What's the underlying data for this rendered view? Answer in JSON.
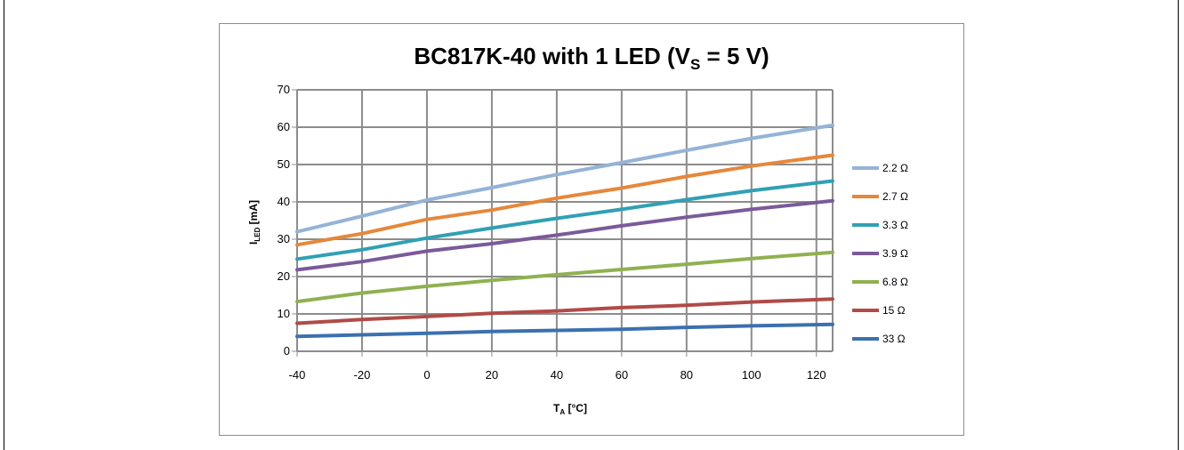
{
  "chart_data": {
    "type": "line",
    "title": "BC817K-40 with 1 LED (V",
    "title_sub": "S",
    "title_tail": " = 5 V)",
    "xlabel": "T",
    "xlabel_sub": "A",
    "xlabel_tail": " [°C]",
    "ylabel": "I",
    "ylabel_sub": "LED",
    "ylabel_tail": " [mA]",
    "xlim": [
      -40,
      125
    ],
    "ylim": [
      0,
      70
    ],
    "x_ticks": [
      -40,
      -20,
      0,
      20,
      40,
      60,
      80,
      100,
      120
    ],
    "y_ticks": [
      0,
      10,
      20,
      30,
      40,
      50,
      60,
      70
    ],
    "grid": true,
    "legend_position": "right",
    "x": [
      -40,
      -20,
      0,
      20,
      40,
      60,
      80,
      100,
      125
    ],
    "series": [
      {
        "name": "2.2 Ω",
        "color": "#95b3d7",
        "values": [
          32,
          36.2,
          40.5,
          43.8,
          47.3,
          50.5,
          53.8,
          57,
          60.5
        ]
      },
      {
        "name": "2.7 Ω",
        "color": "#e6873a",
        "values": [
          28.5,
          31.5,
          35.3,
          37.8,
          41,
          43.7,
          46.8,
          49.6,
          52.5
        ]
      },
      {
        "name": "3.3 Ω",
        "color": "#31a0b4",
        "values": [
          24.7,
          27.2,
          30.3,
          33,
          35.6,
          38,
          40.6,
          43,
          45.6
        ]
      },
      {
        "name": "3.9 Ω",
        "color": "#7b5a9a",
        "values": [
          21.8,
          24,
          26.8,
          28.8,
          31.1,
          33.6,
          35.9,
          38,
          40.3
        ]
      },
      {
        "name": "6.8 Ω",
        "color": "#8fb150",
        "values": [
          13.3,
          15.6,
          17.4,
          19,
          20.5,
          21.9,
          23.3,
          24.8,
          26.5
        ]
      },
      {
        "name": "15 Ω",
        "color": "#b04b47",
        "values": [
          7.5,
          8.5,
          9.3,
          10.2,
          10.8,
          11.7,
          12.3,
          13.2,
          14
        ]
      },
      {
        "name": "33 Ω",
        "color": "#3b70b0",
        "values": [
          4,
          4.4,
          4.8,
          5.3,
          5.6,
          5.9,
          6.4,
          6.8,
          7.2
        ]
      }
    ]
  }
}
